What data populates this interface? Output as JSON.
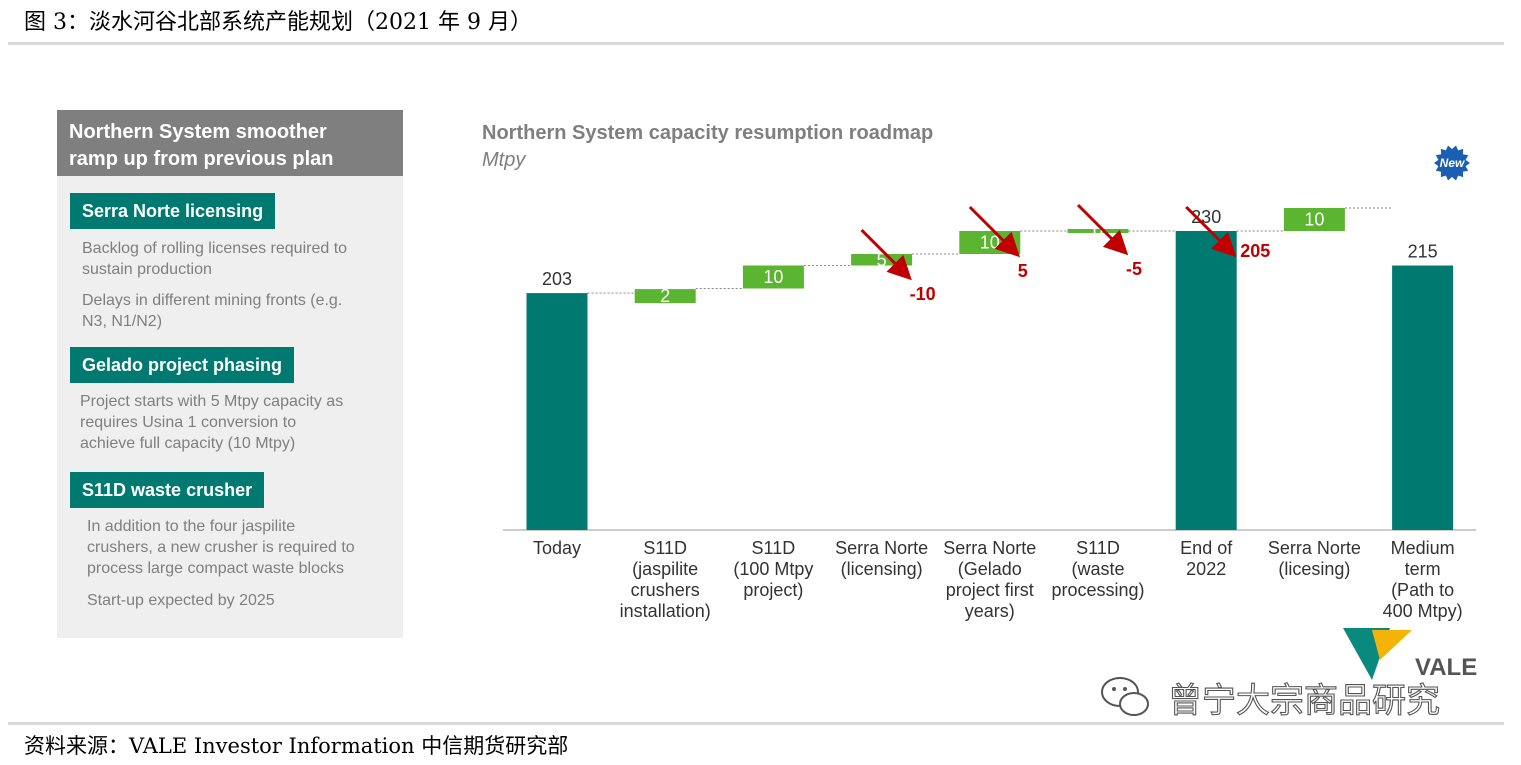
{
  "figure": {
    "title": "图 3：淡水河谷北部系统产能规划（2021 年 9 月）",
    "source": "资料来源：VALE Investor Information  中信期货研究部"
  },
  "panel": {
    "header": [
      "Northern System smoother",
      "ramp up from previous plan"
    ],
    "sections": [
      {
        "title": "Serra Norte licensing",
        "paragraphs": [
          [
            "Backlog of rolling licenses required to",
            "sustain production"
          ],
          [
            "Delays in different mining fronts (e.g.",
            "N3, N1/N2)"
          ]
        ]
      },
      {
        "title": "Gelado project phasing",
        "paragraphs": [
          [
            "Project starts with 5 Mtpy capacity as",
            "requires Usina 1 conversion to",
            "achieve full capacity (10 Mtpy)"
          ]
        ]
      },
      {
        "title": "S11D waste crusher",
        "paragraphs": [
          [
            "In addition to the four jaspilite",
            "crushers, a new crusher is required to",
            "process large compact waste blocks"
          ],
          [
            "Start-up expected by 2025"
          ]
        ]
      }
    ]
  },
  "badge": "New",
  "logo": {
    "text": "VALE",
    "icon": "vale-v-logo-icon"
  },
  "watermark": {
    "text": "曾宁大宗商品研究",
    "icon": "wechat-icon"
  },
  "colors": {
    "teal": "#007a70",
    "green": "#5cb531",
    "red": "#c00000",
    "badge": "#1a5fb4",
    "title_gray": "#7f7f7f"
  },
  "chart_data": {
    "type": "waterfall",
    "title": "Northern System capacity resumption roadmap",
    "subtitle": "Mtpy",
    "categories": [
      [
        "Today"
      ],
      [
        "S11D",
        "(jaspilite",
        "crushers",
        "installation)"
      ],
      [
        "S11D",
        "(100 Mtpy",
        "project)"
      ],
      [
        "Serra Norte",
        "(licensing)"
      ],
      [
        "Serra Norte",
        "(Gelado",
        "project first",
        "years)"
      ],
      [
        "S11D",
        "(waste",
        "processing)"
      ],
      [
        "End of",
        "2022"
      ],
      [
        "Serra Norte",
        "(licesing)"
      ],
      [
        "Medium",
        "term",
        "(Path to",
        "400 Mtpy)"
      ]
    ],
    "bars": [
      {
        "kind": "total",
        "value": 203,
        "label": "203"
      },
      {
        "kind": "delta",
        "value": 2,
        "label": "2"
      },
      {
        "kind": "delta",
        "value": 10,
        "label": "10"
      },
      {
        "kind": "delta",
        "value": 5,
        "label": "5"
      },
      {
        "kind": "delta",
        "value": 10,
        "label": "10"
      },
      {
        "kind": "delta",
        "value": 0,
        "label": "0"
      },
      {
        "kind": "total",
        "value": 230,
        "label": "230"
      },
      {
        "kind": "delta",
        "value": 10,
        "label": "10"
      },
      {
        "kind": "total",
        "value": 215,
        "label": "215"
      }
    ],
    "revisions": [
      {
        "category_index": 3,
        "label": "-10"
      },
      {
        "category_index": 4,
        "label": "5"
      },
      {
        "category_index": 5,
        "label": "-5"
      },
      {
        "category_index": 6,
        "label": "205"
      }
    ],
    "ylim": [
      100,
      240
    ],
    "grid": false,
    "legend": "none"
  }
}
